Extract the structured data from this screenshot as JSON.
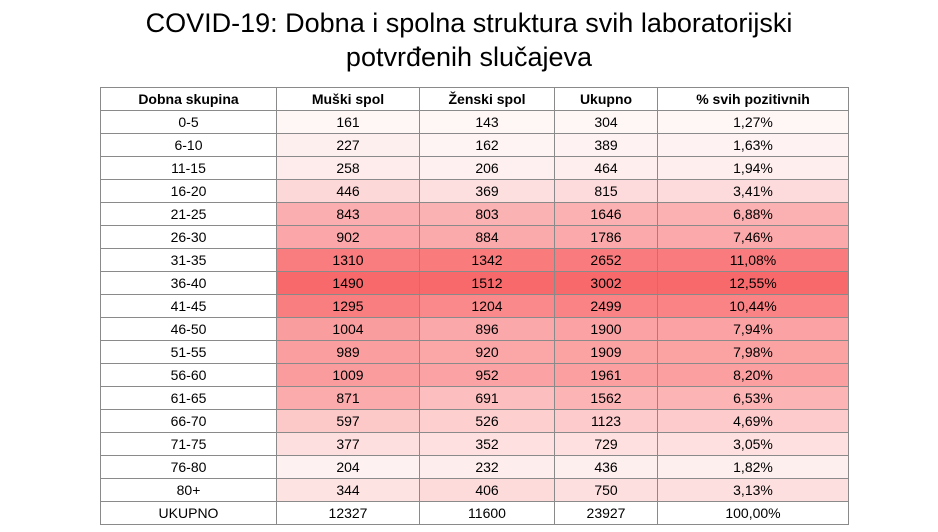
{
  "title_line1": "COVID-19: Dobna i spolna struktura svih laboratorijski",
  "title_line2": "potvrđenih slučajeva",
  "heat_color": "#f8696b",
  "chart_data": {
    "type": "table",
    "columns": [
      "Dobna skupina",
      "Muški spol",
      "Ženski spol",
      "Ukupno",
      "% svih pozitivnih"
    ],
    "rows": [
      [
        "0-5",
        "161",
        "143",
        "304",
        "1,27%"
      ],
      [
        "6-10",
        "227",
        "162",
        "389",
        "1,63%"
      ],
      [
        "11-15",
        "258",
        "206",
        "464",
        "1,94%"
      ],
      [
        "16-20",
        "446",
        "369",
        "815",
        "3,41%"
      ],
      [
        "21-25",
        "843",
        "803",
        "1646",
        "6,88%"
      ],
      [
        "26-30",
        "902",
        "884",
        "1786",
        "7,46%"
      ],
      [
        "31-35",
        "1310",
        "1342",
        "2652",
        "11,08%"
      ],
      [
        "36-40",
        "1490",
        "1512",
        "3002",
        "12,55%"
      ],
      [
        "41-45",
        "1295",
        "1204",
        "2499",
        "10,44%"
      ],
      [
        "46-50",
        "1004",
        "896",
        "1900",
        "7,94%"
      ],
      [
        "51-55",
        "989",
        "920",
        "1909",
        "7,98%"
      ],
      [
        "56-60",
        "1009",
        "952",
        "1961",
        "8,20%"
      ],
      [
        "61-65",
        "871",
        "691",
        "1562",
        "6,53%"
      ],
      [
        "66-70",
        "597",
        "526",
        "1123",
        "4,69%"
      ],
      [
        "71-75",
        "377",
        "352",
        "729",
        "3,05%"
      ],
      [
        "76-80",
        "204",
        "232",
        "436",
        "1,82%"
      ],
      [
        "80+",
        "344",
        "406",
        "750",
        "3,13%"
      ]
    ],
    "total_row": [
      "UKUPNO",
      "12327",
      "11600",
      "23927",
      "100,00%"
    ]
  }
}
